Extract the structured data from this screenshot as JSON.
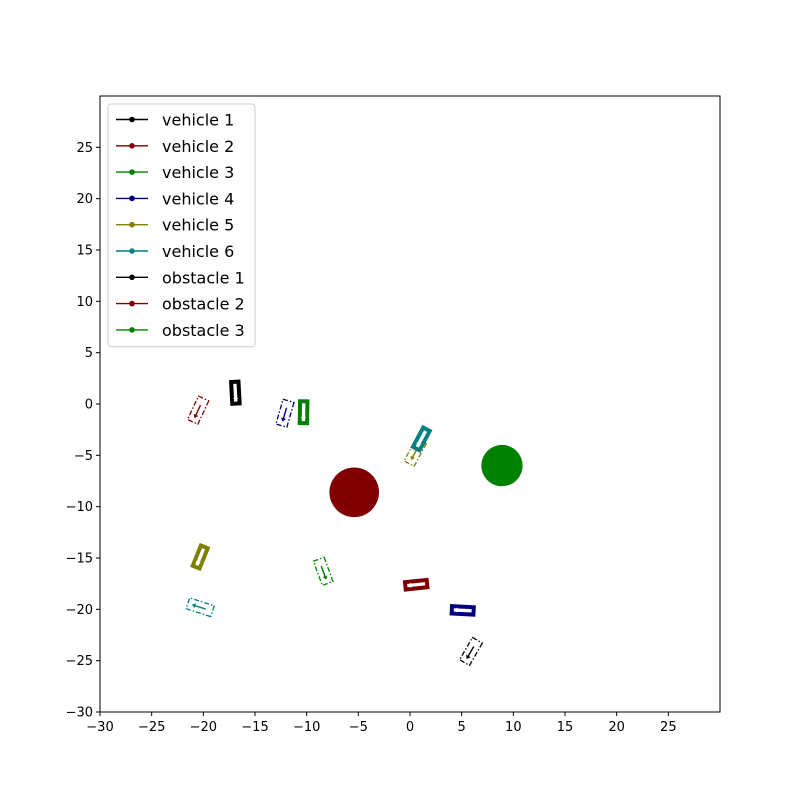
{
  "chart_data": {
    "type": "scatter",
    "title": "",
    "xlabel": "",
    "ylabel": "",
    "xlim": [
      -30,
      30
    ],
    "ylim": [
      -30,
      30
    ],
    "xticks": [
      -30,
      -25,
      -20,
      -15,
      -10,
      -5,
      0,
      5,
      10,
      15,
      20,
      25
    ],
    "yticks": [
      -30,
      -25,
      -20,
      -15,
      -10,
      -5,
      0,
      5,
      10,
      15,
      20,
      25
    ],
    "xtick_labels": [
      "−30",
      "−25",
      "−20",
      "−15",
      "−10",
      "−5",
      "0",
      "5",
      "10",
      "15",
      "20",
      "25"
    ],
    "ytick_labels": [
      "−30",
      "−25",
      "−20",
      "−15",
      "−10",
      "−5",
      "0",
      "5",
      "10",
      "15",
      "20",
      "25"
    ],
    "grid": false,
    "legend_placement": "upper-left",
    "legend": [
      {
        "label": "vehicle 1",
        "color": "#000000"
      },
      {
        "label": "vehicle 2",
        "color": "#800000"
      },
      {
        "label": "vehicle 3",
        "color": "#008000"
      },
      {
        "label": "vehicle 4",
        "color": "#000080"
      },
      {
        "label": "vehicle 5",
        "color": "#808000"
      },
      {
        "label": "vehicle 6",
        "color": "#008080"
      },
      {
        "label": "obstacle 1",
        "color": "#000000"
      },
      {
        "label": "obstacle 2",
        "color": "#800000"
      },
      {
        "label": "obstacle 3",
        "color": "#008000"
      }
    ],
    "vehicles": [
      {
        "name": "vehicle 1",
        "color": "#000000",
        "current": {
          "x": -16.9,
          "y": 1.1,
          "heading_deg": -87
        },
        "goal": {
          "x": 5.9,
          "y": -24.1,
          "heading_deg": -120
        }
      },
      {
        "name": "vehicle 2",
        "color": "#800000",
        "current": {
          "x": 0.6,
          "y": -17.6,
          "heading_deg": -174
        },
        "goal": {
          "x": -20.5,
          "y": -0.6,
          "heading_deg": -115
        }
      },
      {
        "name": "vehicle 3",
        "color": "#008000",
        "current": {
          "x": -10.3,
          "y": -0.8,
          "heading_deg": -91
        },
        "goal": {
          "x": -8.4,
          "y": -16.3,
          "heading_deg": -70
        }
      },
      {
        "name": "vehicle 4",
        "color": "#000080",
        "current": {
          "x": 5.1,
          "y": -20.1,
          "heading_deg": 177
        },
        "goal": {
          "x": -12.1,
          "y": -0.9,
          "heading_deg": -106
        }
      },
      {
        "name": "vehicle 5",
        "color": "#808000",
        "current": {
          "x": -20.3,
          "y": -14.9,
          "heading_deg": -112
        },
        "goal": {
          "x": 0.5,
          "y": -4.7,
          "heading_deg": -118
        }
      },
      {
        "name": "vehicle 6",
        "color": "#008080",
        "current": {
          "x": 1.1,
          "y": -3.4,
          "heading_deg": -118
        },
        "goal": {
          "x": -20.3,
          "y": -19.8,
          "heading_deg": 162
        }
      }
    ],
    "vehicle_size": {
      "length": 2.5,
      "width": 1.1
    },
    "obstacles": [
      {
        "name": "obstacle 1",
        "color": "#000000",
        "x": null,
        "y": null,
        "radius": 0
      },
      {
        "name": "obstacle 2",
        "color": "#800000",
        "x": -5.4,
        "y": -8.6,
        "radius": 2.4
      },
      {
        "name": "obstacle 3",
        "color": "#008000",
        "x": 8.9,
        "y": -6.0,
        "radius": 2.0
      }
    ]
  }
}
